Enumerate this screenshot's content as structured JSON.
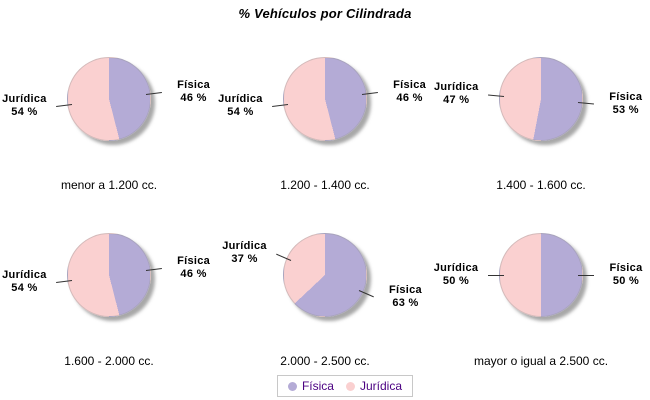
{
  "chart_data": {
    "type": "pie",
    "title": "% Vehículos por Cilindrada",
    "series": [
      {
        "name": "Física",
        "color": "#b4abd6"
      },
      {
        "name": "Jurídica",
        "color": "#fad0d0"
      }
    ],
    "value_suffix": " %",
    "charts": [
      {
        "category": "menor a 1.200 cc.",
        "values": [
          46,
          54
        ]
      },
      {
        "category": "1.200 - 1.400 cc.",
        "values": [
          46,
          54
        ]
      },
      {
        "category": "1.400 - 1.600 cc.",
        "values": [
          53,
          47
        ]
      },
      {
        "category": "1.600 - 2.000 cc.",
        "values": [
          46,
          54
        ]
      },
      {
        "category": "2.000 - 2.500 cc.",
        "values": [
          63,
          37
        ]
      },
      {
        "category": "mayor o igual a 2.500 cc.",
        "values": [
          50,
          50
        ]
      }
    ],
    "layout": {
      "grid": "3 columns x 2 rows",
      "legend_position": "bottom-center",
      "labels": "callout with series name and percent",
      "slice_start": "12 o'clock, clockwise",
      "shadow": true
    },
    "styles": {
      "title_color": "#000000",
      "label_color": "#000000",
      "category_color": "#000000",
      "connector_color": "#333333",
      "legend_text_color": "#4b0082",
      "legend_border_color": "#c8c8c8",
      "shadow_color": "#9a9a9a",
      "background": "#ffffff"
    }
  }
}
